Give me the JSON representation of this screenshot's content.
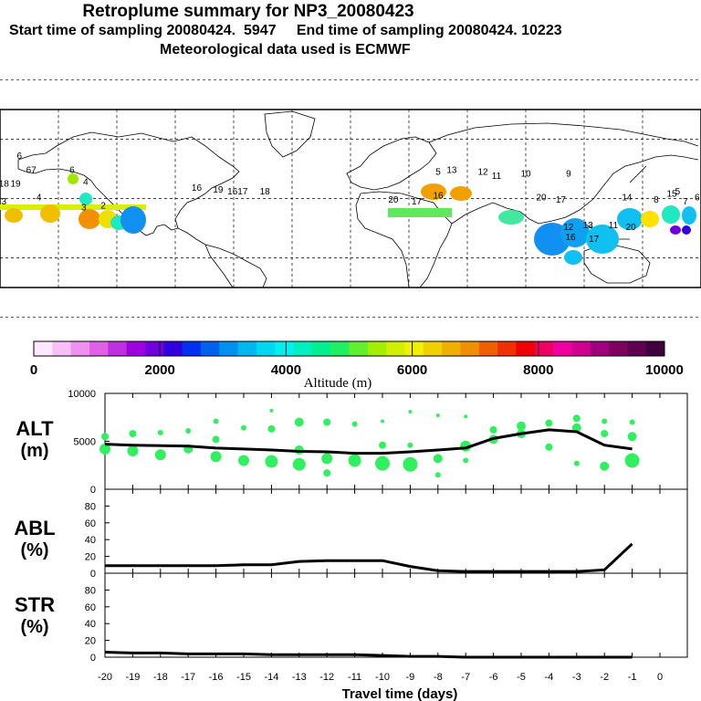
{
  "header": {
    "title": "Retroplume summary for NP3_20080423",
    "sampling": "Start time of sampling 20080424.  5947     End time of sampling 20080424. 10223",
    "met": "Meteorological data used is ECMWF"
  },
  "map": {
    "labels": [
      {
        "t": "3",
        "lon": -178,
        "lat": -3,
        "c": "#f0c000"
      },
      {
        "t": "18",
        "lon": -178,
        "lat": 6,
        "c": "#f6e000"
      },
      {
        "t": "19",
        "lon": -172,
        "lat": 6,
        "c": "#ffee00"
      },
      {
        "t": "6",
        "lon": -170,
        "lat": 20,
        "c": "#ffee00"
      },
      {
        "t": "67",
        "lon": -164,
        "lat": 13,
        "c": "#ffe000"
      },
      {
        "t": "4",
        "lon": -160,
        "lat": -1,
        "c": "#e8d000"
      },
      {
        "t": "6",
        "lon": -143,
        "lat": 13,
        "c": "#9ee800"
      },
      {
        "t": "4",
        "lon": -136,
        "lat": 7,
        "c": "#20e8c0"
      },
      {
        "t": "3",
        "lon": -137,
        "lat": -6,
        "c": "#f2a000"
      },
      {
        "t": "2",
        "lon": -127,
        "lat": -5,
        "c": "#f0d000"
      },
      {
        "t": "16",
        "lon": -79,
        "lat": 4,
        "c": "#e0e000"
      },
      {
        "t": "19",
        "lon": -68,
        "lat": 3,
        "c": "#ffe000"
      },
      {
        "t": "1617",
        "lon": -58,
        "lat": 2,
        "c": "#ffe000"
      },
      {
        "t": "18",
        "lon": -44,
        "lat": 2,
        "c": "#ff9000"
      },
      {
        "t": "5",
        "lon": 45,
        "lat": 12,
        "c": "#ffe000"
      },
      {
        "t": "13",
        "lon": 52,
        "lat": 13,
        "c": "#f2a000"
      },
      {
        "t": "12",
        "lon": 68,
        "lat": 12,
        "c": "#f2a000"
      },
      {
        "t": "11",
        "lon": 75,
        "lat": 10,
        "c": "#ffe000"
      },
      {
        "t": "10",
        "lon": 90,
        "lat": 11,
        "c": "#ffe000"
      },
      {
        "t": "9",
        "lon": 112,
        "lat": 11,
        "c": "#ff8000"
      },
      {
        "t": "14",
        "lon": 142,
        "lat": -1,
        "c": "#00e0e0"
      },
      {
        "t": "15",
        "lon": 165,
        "lat": 1,
        "c": "#20e8c0"
      },
      {
        "t": "20",
        "lon": 22,
        "lat": -2,
        "c": "#88f000"
      },
      {
        "t": "17",
        "lon": 34,
        "lat": -3,
        "c": "#b0f000"
      },
      {
        "t": "16",
        "lon": 45,
        "lat": 0,
        "c": "#b0f000"
      },
      {
        "t": "20",
        "lon": 98,
        "lat": -1,
        "c": "#40e8a0"
      },
      {
        "t": "17",
        "lon": 108,
        "lat": -2,
        "c": "#40e8a0"
      },
      {
        "t": "12",
        "lon": 112,
        "lat": -16,
        "c": "#1090f0"
      },
      {
        "t": "13",
        "lon": 122,
        "lat": -15,
        "c": "#1090f0"
      },
      {
        "t": "11",
        "lon": 135,
        "lat": -15,
        "c": "#10c0f0"
      },
      {
        "t": "20",
        "lon": 144,
        "lat": -16,
        "c": "#40e8a0"
      },
      {
        "t": "17",
        "lon": 125,
        "lat": -22,
        "c": "#10c0f0"
      },
      {
        "t": "16",
        "lon": 113,
        "lat": -21,
        "c": "#1090f0"
      },
      {
        "t": "8",
        "lon": 157,
        "lat": -2,
        "c": "#10c0f0"
      },
      {
        "t": "7",
        "lon": 172,
        "lat": -3,
        "c": "#20e8c0"
      },
      {
        "t": "6",
        "lon": 178,
        "lat": -1,
        "c": "#10c0f0"
      },
      {
        "t": "5",
        "lon": 168,
        "lat": 2,
        "c": "#ffe000"
      }
    ]
  },
  "colorbar": {
    "colors": [
      "#ffe8ff",
      "#f8c0f8",
      "#f090f0",
      "#e060e8",
      "#c030e0",
      "#a000e0",
      "#7000e0",
      "#3000e0",
      "#0030f0",
      "#0060f0",
      "#0090f0",
      "#00b8f0",
      "#00d8f0",
      "#00f0f0",
      "#00f0c0",
      "#00f090",
      "#20f060",
      "#60f030",
      "#a0f000",
      "#d0f000",
      "#f0f000",
      "#f0d000",
      "#f0b000",
      "#f09000",
      "#f06000",
      "#f03000",
      "#f00000",
      "#f00060",
      "#f000a0",
      "#d00090",
      "#a00080",
      "#800060",
      "#600050",
      "#400040"
    ],
    "ticks": [
      "0",
      "2000",
      "4000",
      "6000",
      "8000",
      "10000"
    ],
    "label": "Altitude (m)"
  },
  "panels": {
    "alt": {
      "name": "ALT",
      "unit": "(m)",
      "yticks": [
        "10000",
        "5000",
        "0"
      ]
    },
    "abl": {
      "name": "ABL",
      "unit": "(%)",
      "yticks": [
        "80",
        "60",
        "40",
        "20",
        "0"
      ]
    },
    "str": {
      "name": "STR",
      "unit": "(%)",
      "yticks": [
        "80",
        "60",
        "40",
        "20",
        "0"
      ]
    }
  },
  "xaxis": {
    "label": "Travel time (days)",
    "ticks": [
      "-20",
      "-19",
      "-18",
      "-17",
      "-16",
      "-15",
      "-14",
      "-13",
      "-12",
      "-11",
      "-10",
      "-9",
      "-8",
      "-7",
      "-6",
      "-5",
      "-4",
      "-3",
      "-2",
      "-1",
      "0"
    ]
  },
  "chart_data": [
    {
      "type": "line",
      "title": "ALT",
      "xlabel": "Travel time (days)",
      "ylabel": "(m)",
      "ylim": [
        0,
        10000
      ],
      "xlim": [
        -20,
        0
      ],
      "x": [
        -20,
        -19,
        -18,
        -17,
        -16,
        -15,
        -14,
        -13,
        -12,
        -11,
        -10,
        -9,
        -8,
        -7,
        -6,
        -5,
        -4,
        -3,
        -2,
        -1
      ],
      "values": [
        4700,
        4600,
        4550,
        4500,
        4300,
        4200,
        4100,
        3950,
        3900,
        3750,
        3750,
        3900,
        4100,
        4300,
        5300,
        5800,
        6200,
        6000,
        4600,
        4200
      ],
      "scatter": [
        {
          "x": -20,
          "y": 5500,
          "s": 4
        },
        {
          "x": -20,
          "y": 4200,
          "s": 6
        },
        {
          "x": -19,
          "y": 5800,
          "s": 4
        },
        {
          "x": -19,
          "y": 4000,
          "s": 6
        },
        {
          "x": -18,
          "y": 5900,
          "s": 3
        },
        {
          "x": -18,
          "y": 3600,
          "s": 6
        },
        {
          "x": -17,
          "y": 6100,
          "s": 3
        },
        {
          "x": -17,
          "y": 4200,
          "s": 5
        },
        {
          "x": -16,
          "y": 7100,
          "s": 3
        },
        {
          "x": -16,
          "y": 5200,
          "s": 4
        },
        {
          "x": -16,
          "y": 3400,
          "s": 6
        },
        {
          "x": -15,
          "y": 6400,
          "s": 3
        },
        {
          "x": -15,
          "y": 3000,
          "s": 6
        },
        {
          "x": -14,
          "y": 8200,
          "s": 2
        },
        {
          "x": -14,
          "y": 6300,
          "s": 4
        },
        {
          "x": -14,
          "y": 2900,
          "s": 7
        },
        {
          "x": -13,
          "y": 7000,
          "s": 5
        },
        {
          "x": -13,
          "y": 4100,
          "s": 5
        },
        {
          "x": -13,
          "y": 2600,
          "s": 7
        },
        {
          "x": -12,
          "y": 7000,
          "s": 4
        },
        {
          "x": -12,
          "y": 3200,
          "s": 6
        },
        {
          "x": -12,
          "y": 1700,
          "s": 4
        },
        {
          "x": -11,
          "y": 6800,
          "s": 3
        },
        {
          "x": -11,
          "y": 3000,
          "s": 7
        },
        {
          "x": -10,
          "y": 7100,
          "s": 2
        },
        {
          "x": -10,
          "y": 4600,
          "s": 4
        },
        {
          "x": -10,
          "y": 2700,
          "s": 8
        },
        {
          "x": -9,
          "y": 8100,
          "s": 2
        },
        {
          "x": -9,
          "y": 4600,
          "s": 3
        },
        {
          "x": -9,
          "y": 2600,
          "s": 8
        },
        {
          "x": -8,
          "y": 7700,
          "s": 2
        },
        {
          "x": -8,
          "y": 3200,
          "s": 5
        },
        {
          "x": -8,
          "y": 1500,
          "s": 3
        },
        {
          "x": -7,
          "y": 7600,
          "s": 2
        },
        {
          "x": -7,
          "y": 4500,
          "s": 6
        },
        {
          "x": -7,
          "y": 3000,
          "s": 3
        },
        {
          "x": -6,
          "y": 6200,
          "s": 4
        },
        {
          "x": -6,
          "y": 5200,
          "s": 5
        },
        {
          "x": -5,
          "y": 6600,
          "s": 5
        },
        {
          "x": -5,
          "y": 5800,
          "s": 5
        },
        {
          "x": -4,
          "y": 6900,
          "s": 4
        },
        {
          "x": -4,
          "y": 4400,
          "s": 4
        },
        {
          "x": -3,
          "y": 7400,
          "s": 4
        },
        {
          "x": -3,
          "y": 6400,
          "s": 5
        },
        {
          "x": -3,
          "y": 2700,
          "s": 3
        },
        {
          "x": -2,
          "y": 7100,
          "s": 3
        },
        {
          "x": -2,
          "y": 5800,
          "s": 4
        },
        {
          "x": -2,
          "y": 2400,
          "s": 5
        },
        {
          "x": -1,
          "y": 7000,
          "s": 3
        },
        {
          "x": -1,
          "y": 5500,
          "s": 5
        },
        {
          "x": -1,
          "y": 3000,
          "s": 8
        }
      ]
    },
    {
      "type": "line",
      "title": "ABL",
      "xlabel": "Travel time (days)",
      "ylabel": "(%)",
      "ylim": [
        0,
        100
      ],
      "xlim": [
        -20,
        0
      ],
      "x": [
        -20,
        -19,
        -18,
        -17,
        -16,
        -15,
        -14,
        -13,
        -12,
        -11,
        -10,
        -9,
        -8,
        -7,
        -6,
        -5,
        -4,
        -3,
        -2,
        -1
      ],
      "values": [
        9,
        9,
        9,
        9,
        9,
        10,
        10,
        14,
        15,
        15,
        15,
        8,
        3,
        2,
        2,
        2,
        2,
        2,
        4,
        35
      ]
    },
    {
      "type": "line",
      "title": "STR",
      "xlabel": "Travel time (days)",
      "ylabel": "(%)",
      "ylim": [
        0,
        100
      ],
      "xlim": [
        -20,
        0
      ],
      "x": [
        -20,
        -19,
        -18,
        -17,
        -16,
        -15,
        -14,
        -13,
        -12,
        -11,
        -10,
        -9,
        -8,
        -7,
        -6,
        -5,
        -4,
        -3,
        -2,
        -1
      ],
      "values": [
        6,
        5,
        5,
        4,
        4,
        4,
        3,
        3,
        3,
        3,
        2,
        1,
        1,
        0,
        0,
        0,
        0,
        0,
        0,
        0
      ]
    }
  ]
}
